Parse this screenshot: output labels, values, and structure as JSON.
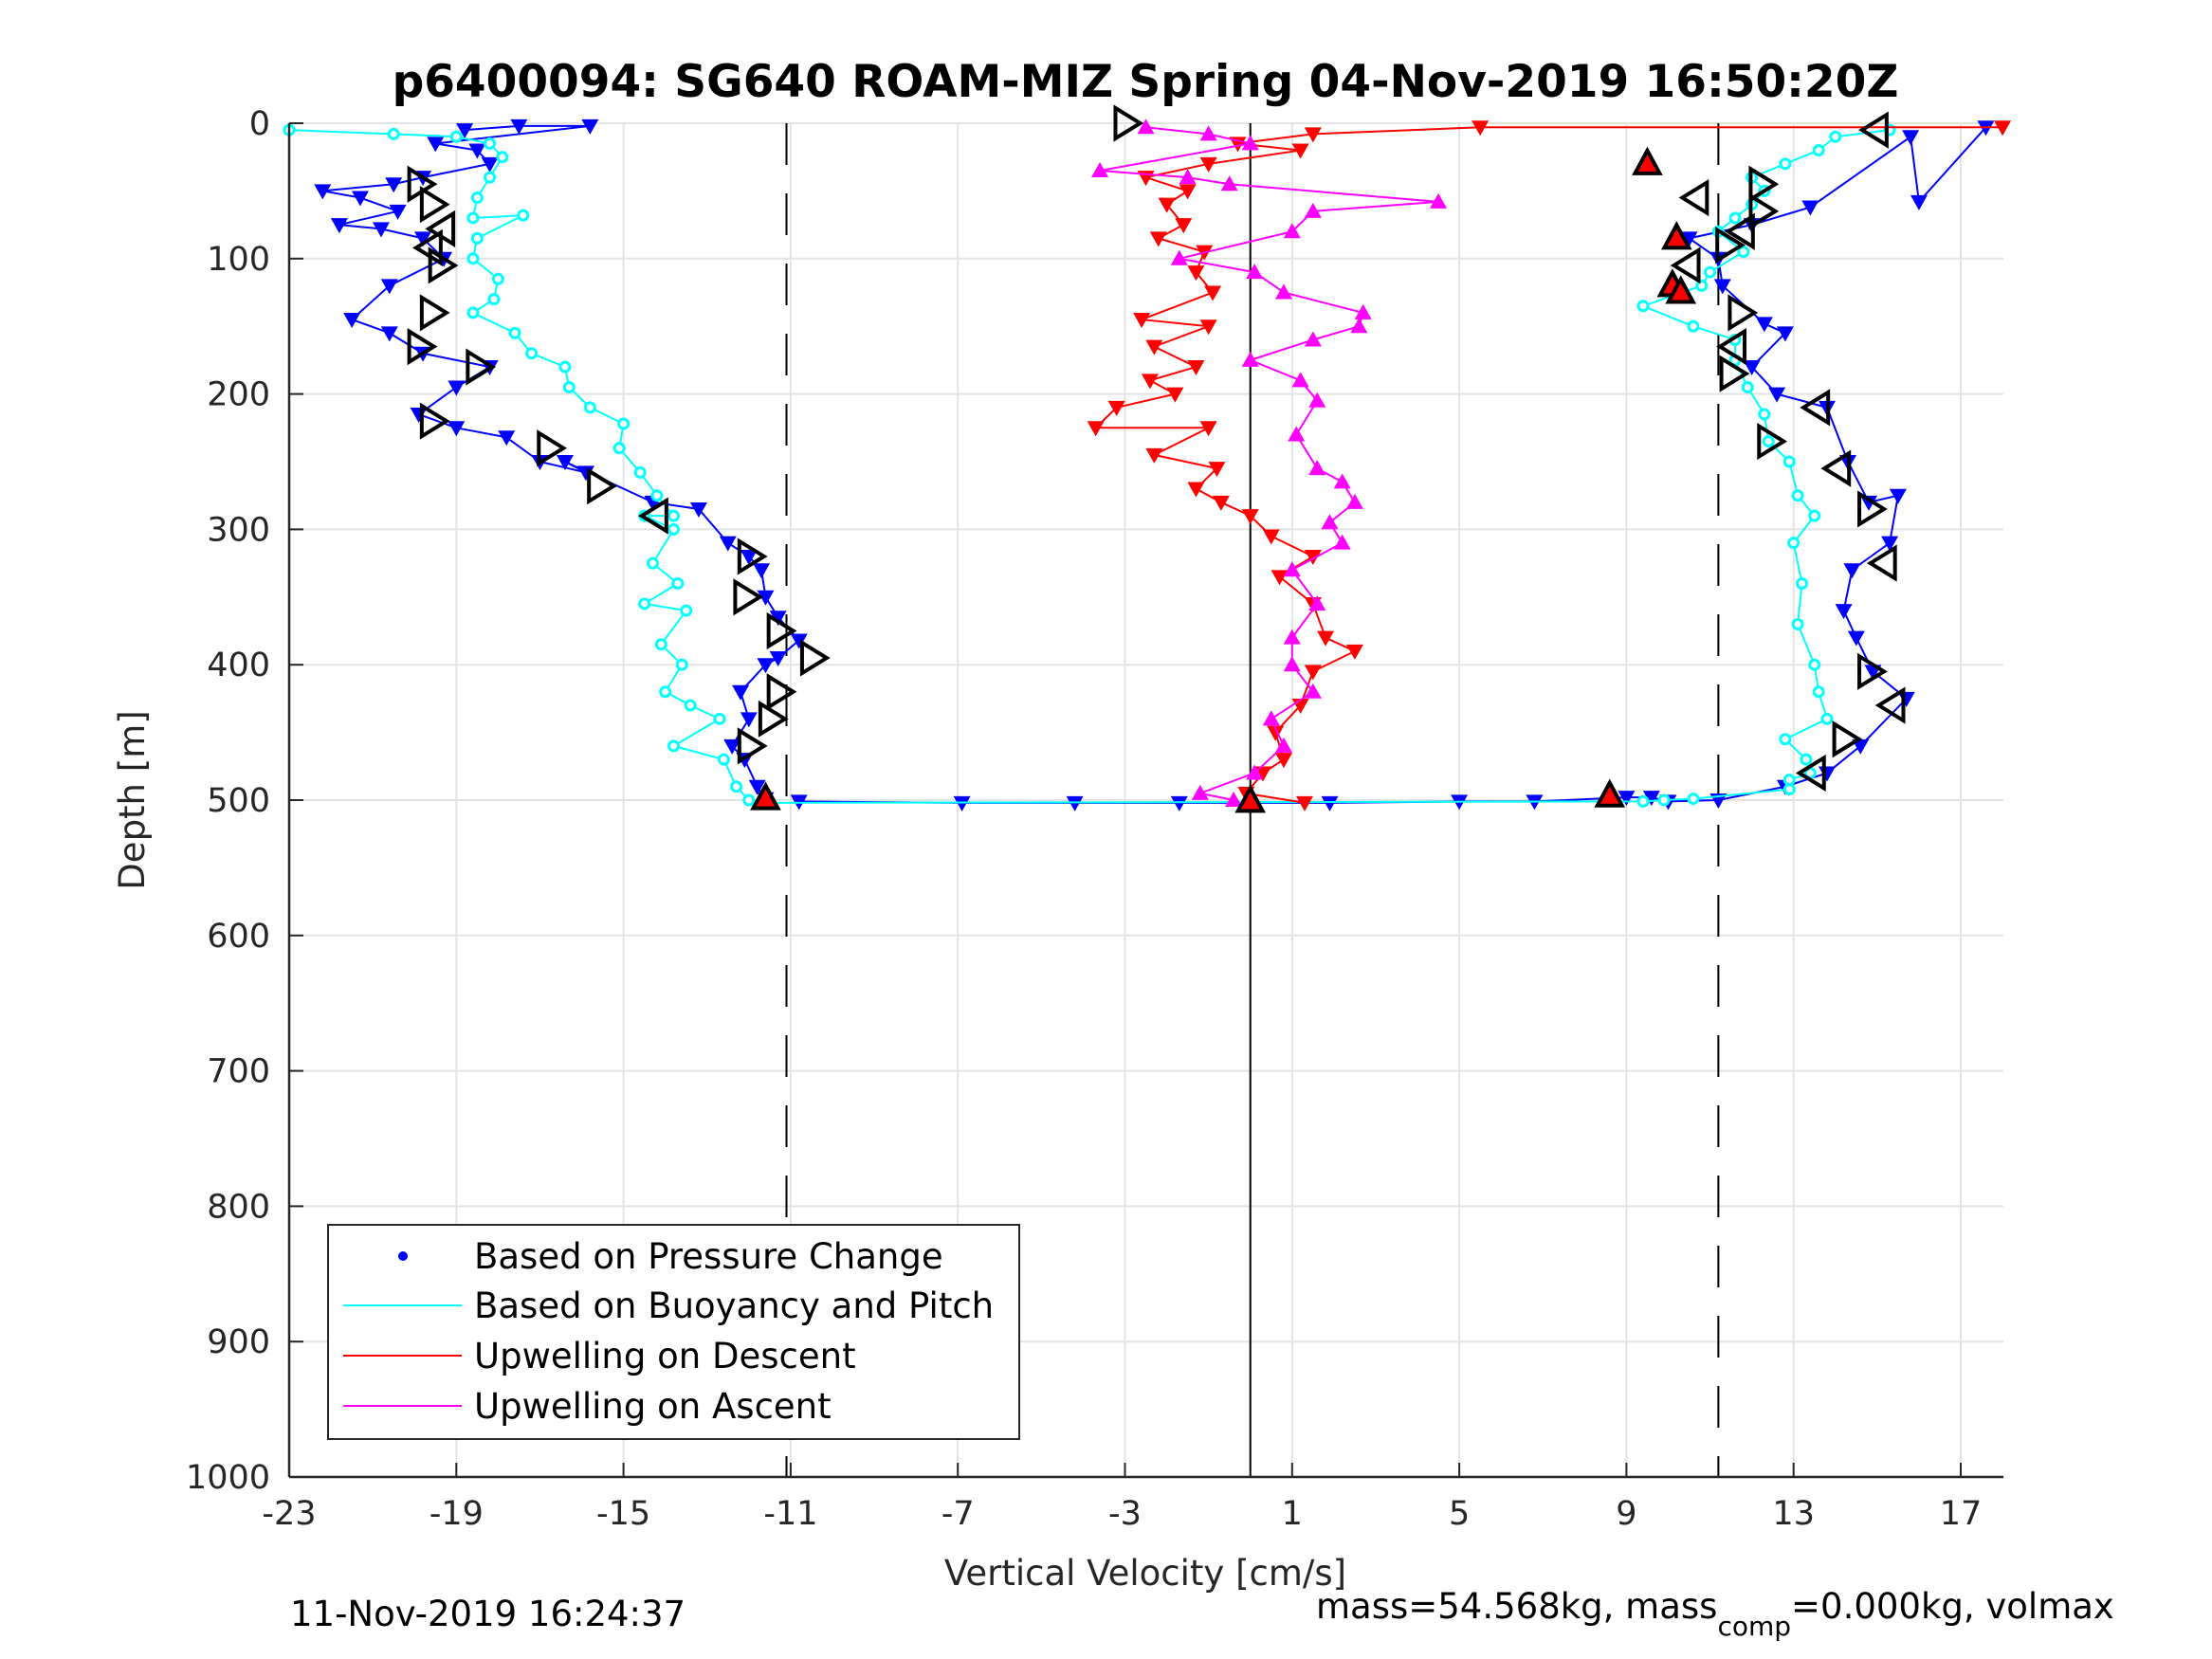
{
  "chart_data": {
    "type": "scatter",
    "title": "p6400094: SG640 ROAM-MIZ Spring 04-Nov-2019 16:50:20Z",
    "xlabel": "Vertical Velocity [cm/s]",
    "ylabel": "Depth [m]",
    "xlim": [
      -23,
      18
    ],
    "ylim": [
      0,
      1000
    ],
    "y_reversed": true,
    "grid": true,
    "x_ticks": [
      "-23",
      "-19",
      "-15",
      "-11",
      "-7",
      "-3",
      "1",
      "5",
      "9",
      "13",
      "17"
    ],
    "y_ticks": [
      "0",
      "100",
      "200",
      "300",
      "400",
      "500",
      "600",
      "700",
      "800",
      "900",
      "1000"
    ],
    "reference_lines": [
      {
        "name": "descent-target",
        "x": -11.1,
        "style": "dashed"
      },
      {
        "name": "zero",
        "x": 0,
        "style": "solid"
      },
      {
        "name": "ascent-target",
        "x": 11.2,
        "style": "dashed"
      }
    ],
    "legend": {
      "placement": "bottom-left",
      "entries": [
        {
          "label": "Based on Pressure Change",
          "color": "#0000ff",
          "marker": "dot"
        },
        {
          "label": "Based on Buoyancy and Pitch",
          "color": "#00ffff",
          "marker": "line"
        },
        {
          "label": "Upwelling on Descent",
          "color": "#ff0000",
          "marker": "line"
        },
        {
          "label": "Upwelling on Ascent",
          "color": "#ff00ff",
          "marker": "line"
        }
      ]
    },
    "series": [
      {
        "name": "Based on Pressure Change (descent)",
        "color": "#0000ff",
        "points": [
          [
            -18.8,
            5
          ],
          [
            -17.5,
            2
          ],
          [
            -15.8,
            2
          ],
          [
            -19.5,
            15
          ],
          [
            -18.5,
            20
          ],
          [
            -18.2,
            30
          ],
          [
            -19.8,
            40
          ],
          [
            -20.5,
            45
          ],
          [
            -22.2,
            50
          ],
          [
            -21.3,
            55
          ],
          [
            -20.4,
            65
          ],
          [
            -21.8,
            75
          ],
          [
            -20.8,
            78
          ],
          [
            -19.8,
            85
          ],
          [
            -19.3,
            100
          ],
          [
            -20.6,
            120
          ],
          [
            -21.5,
            145
          ],
          [
            -20.6,
            155
          ],
          [
            -19.8,
            170
          ],
          [
            -18.2,
            180
          ],
          [
            -19.0,
            195
          ],
          [
            -19.9,
            215
          ],
          [
            -19.0,
            225
          ],
          [
            -17.8,
            232
          ],
          [
            -17.0,
            250
          ],
          [
            -15.9,
            258
          ],
          [
            -16.4,
            250
          ],
          [
            -14.3,
            280
          ],
          [
            -13.2,
            285
          ],
          [
            -12.5,
            310
          ],
          [
            -12.0,
            320
          ],
          [
            -11.7,
            330
          ],
          [
            -11.6,
            350
          ],
          [
            -11.3,
            365
          ],
          [
            -10.8,
            382
          ],
          [
            -11.3,
            395
          ],
          [
            -11.6,
            400
          ],
          [
            -12.2,
            420
          ],
          [
            -12.0,
            440
          ],
          [
            -12.4,
            460
          ],
          [
            -12.1,
            470
          ],
          [
            -11.8,
            490
          ],
          [
            -11.6,
            499
          ]
        ]
      },
      {
        "name": "Based on Buoyancy and Pitch (descent)",
        "color": "#00ffff",
        "points": [
          [
            -23,
            5
          ],
          [
            -20.5,
            8
          ],
          [
            -19.0,
            10
          ],
          [
            -18.2,
            15
          ],
          [
            -17.9,
            25
          ],
          [
            -18.2,
            40
          ],
          [
            -18.5,
            55
          ],
          [
            -18.6,
            70
          ],
          [
            -17.4,
            68
          ],
          [
            -18.5,
            85
          ],
          [
            -18.6,
            100
          ],
          [
            -18.0,
            115
          ],
          [
            -18.1,
            130
          ],
          [
            -18.6,
            140
          ],
          [
            -17.6,
            155
          ],
          [
            -17.2,
            170
          ],
          [
            -16.4,
            180
          ],
          [
            -16.3,
            195
          ],
          [
            -15.8,
            210
          ],
          [
            -15.0,
            222
          ],
          [
            -15.1,
            240
          ],
          [
            -14.6,
            258
          ],
          [
            -14.2,
            275
          ],
          [
            -13.8,
            290
          ],
          [
            -14.5,
            290
          ],
          [
            -13.8,
            300
          ],
          [
            -14.3,
            325
          ],
          [
            -13.7,
            340
          ],
          [
            -14.5,
            355
          ],
          [
            -13.5,
            360
          ],
          [
            -14.1,
            385
          ],
          [
            -13.6,
            400
          ],
          [
            -14.0,
            420
          ],
          [
            -13.4,
            430
          ],
          [
            -12.7,
            440
          ],
          [
            -13.8,
            460
          ],
          [
            -12.6,
            470
          ],
          [
            -12.3,
            490
          ],
          [
            -12.0,
            500
          ]
        ]
      },
      {
        "name": "Based on Pressure Change (ascent)",
        "color": "#0000ff",
        "points": [
          [
            17.6,
            3
          ],
          [
            16.0,
            58
          ],
          [
            15.8,
            10
          ],
          [
            13.4,
            62
          ],
          [
            12.0,
            75
          ],
          [
            10.5,
            85
          ],
          [
            11.2,
            100
          ],
          [
            11.3,
            120
          ],
          [
            12.3,
            148
          ],
          [
            12.8,
            155
          ],
          [
            12.0,
            180
          ],
          [
            12.6,
            200
          ],
          [
            13.8,
            210
          ],
          [
            14.3,
            250
          ],
          [
            14.8,
            280
          ],
          [
            15.5,
            275
          ],
          [
            15.3,
            310
          ],
          [
            14.4,
            330
          ],
          [
            14.2,
            360
          ],
          [
            14.5,
            380
          ],
          [
            14.9,
            405
          ],
          [
            15.7,
            425
          ],
          [
            14.6,
            460
          ],
          [
            13.8,
            480
          ],
          [
            12.8,
            490
          ],
          [
            11.2,
            500
          ],
          [
            10.0,
            501
          ],
          [
            9.6,
            498
          ],
          [
            9.0,
            498
          ],
          [
            6.8,
            501
          ],
          [
            5.0,
            501
          ],
          [
            1.9,
            502
          ],
          [
            -1.7,
            502
          ],
          [
            -4.2,
            502
          ],
          [
            -6.9,
            502
          ],
          [
            -10.8,
            501
          ]
        ]
      },
      {
        "name": "Based on Buoyancy and Pitch (ascent)",
        "color": "#00ffff",
        "points": [
          [
            15.3,
            5
          ],
          [
            14.0,
            10
          ],
          [
            13.6,
            20
          ],
          [
            12.8,
            30
          ],
          [
            12.0,
            40
          ],
          [
            12.3,
            50
          ],
          [
            12.0,
            60
          ],
          [
            11.6,
            70
          ],
          [
            11.2,
            80
          ],
          [
            11.8,
            95
          ],
          [
            11.0,
            110
          ],
          [
            10.8,
            120
          ],
          [
            9.4,
            135
          ],
          [
            10.6,
            150
          ],
          [
            11.6,
            160
          ],
          [
            11.6,
            175
          ],
          [
            11.9,
            195
          ],
          [
            12.3,
            215
          ],
          [
            12.4,
            235
          ],
          [
            12.9,
            250
          ],
          [
            13.1,
            275
          ],
          [
            13.5,
            290
          ],
          [
            13.0,
            310
          ],
          [
            13.2,
            340
          ],
          [
            13.1,
            370
          ],
          [
            13.5,
            400
          ],
          [
            13.6,
            420
          ],
          [
            13.8,
            440
          ],
          [
            12.8,
            455
          ],
          [
            13.3,
            470
          ],
          [
            13.4,
            480
          ],
          [
            12.9,
            485
          ],
          [
            12.9,
            492
          ],
          [
            10.6,
            499
          ],
          [
            9.9,
            500
          ],
          [
            9.4,
            501
          ],
          [
            -11.6,
            502
          ]
        ]
      },
      {
        "name": "Upwelling on Descent",
        "color": "#ff0000",
        "points": [
          [
            18,
            3
          ],
          [
            5.5,
            3
          ],
          [
            1.5,
            8
          ],
          [
            -0.3,
            15
          ],
          [
            1.2,
            20
          ],
          [
            -1.0,
            30
          ],
          [
            -2.5,
            40
          ],
          [
            -1.5,
            50
          ],
          [
            -2.0,
            60
          ],
          [
            -1.6,
            75
          ],
          [
            -2.2,
            85
          ],
          [
            -1.1,
            95
          ],
          [
            -1.3,
            110
          ],
          [
            -0.9,
            125
          ],
          [
            -2.6,
            145
          ],
          [
            -1.0,
            150
          ],
          [
            -2.3,
            165
          ],
          [
            -1.3,
            180
          ],
          [
            -2.4,
            190
          ],
          [
            -1.8,
            200
          ],
          [
            -3.2,
            210
          ],
          [
            -3.7,
            225
          ],
          [
            -1.0,
            225
          ],
          [
            -2.3,
            245
          ],
          [
            -0.8,
            255
          ],
          [
            -1.3,
            270
          ],
          [
            -0.7,
            280
          ],
          [
            0,
            290
          ],
          [
            0.5,
            305
          ],
          [
            1.5,
            320
          ],
          [
            0.7,
            335
          ],
          [
            1.5,
            355
          ],
          [
            1.8,
            380
          ],
          [
            2.5,
            390
          ],
          [
            1.5,
            405
          ],
          [
            1.2,
            430
          ],
          [
            0.6,
            450
          ],
          [
            0.8,
            470
          ],
          [
            0.3,
            480
          ],
          [
            -0.1,
            495
          ],
          [
            1.3,
            502
          ]
        ]
      },
      {
        "name": "Upwelling on Ascent",
        "color": "#ff00ff",
        "points": [
          [
            -2.5,
            3
          ],
          [
            -1.0,
            8
          ],
          [
            0,
            15
          ],
          [
            -3.6,
            35
          ],
          [
            -1.5,
            40
          ],
          [
            -0.5,
            45
          ],
          [
            4.5,
            58
          ],
          [
            1.5,
            65
          ],
          [
            1.0,
            80
          ],
          [
            -1.7,
            100
          ],
          [
            0.1,
            110
          ],
          [
            0.8,
            125
          ],
          [
            2.7,
            140
          ],
          [
            2.6,
            150
          ],
          [
            1.5,
            160
          ],
          [
            0,
            175
          ],
          [
            1.2,
            190
          ],
          [
            1.6,
            205
          ],
          [
            1.1,
            230
          ],
          [
            1.6,
            255
          ],
          [
            2.2,
            265
          ],
          [
            2.5,
            280
          ],
          [
            1.9,
            295
          ],
          [
            2.2,
            310
          ],
          [
            1.0,
            330
          ],
          [
            1.6,
            355
          ],
          [
            1.0,
            380
          ],
          [
            1.0,
            400
          ],
          [
            1.5,
            420
          ],
          [
            0.5,
            440
          ],
          [
            0.8,
            460
          ],
          [
            0.1,
            480
          ],
          [
            -1.2,
            495
          ],
          [
            -0.4,
            500
          ]
        ]
      }
    ],
    "markers": {
      "descent_open_triangles": [
        [
          -3,
          0
        ],
        [
          -19.9,
          45
        ],
        [
          -19.6,
          60
        ],
        [
          -19.3,
          78
        ],
        [
          -19.6,
          92
        ],
        [
          -19.4,
          105
        ],
        [
          -19.6,
          140
        ],
        [
          -19.9,
          165
        ],
        [
          -18.5,
          180
        ],
        [
          -19.6,
          220
        ],
        [
          -16.8,
          240
        ],
        [
          -15.6,
          268
        ],
        [
          -14.2,
          290
        ],
        [
          -12.0,
          320
        ],
        [
          -12.1,
          350
        ],
        [
          -11.3,
          375
        ],
        [
          -10.5,
          395
        ],
        [
          -11.3,
          420
        ],
        [
          -11.5,
          440
        ],
        [
          -12.0,
          460
        ]
      ],
      "ascent_open_triangles": [
        [
          15.0,
          5
        ],
        [
          12.2,
          45
        ],
        [
          10.7,
          55
        ],
        [
          12.2,
          65
        ],
        [
          11.8,
          80
        ],
        [
          11.4,
          90
        ],
        [
          10.5,
          105
        ],
        [
          11.7,
          140
        ],
        [
          11.6,
          165
        ],
        [
          11.5,
          185
        ],
        [
          13.6,
          210
        ],
        [
          12.4,
          235
        ],
        [
          14.1,
          255
        ],
        [
          14.8,
          285
        ],
        [
          15.2,
          325
        ],
        [
          14.8,
          405
        ],
        [
          15.4,
          430
        ],
        [
          14.2,
          455
        ],
        [
          13.5,
          480
        ]
      ],
      "red_filled_triangles": [
        [
          9.5,
          30
        ],
        [
          10.2,
          85
        ],
        [
          10.1,
          120
        ],
        [
          10.3,
          125
        ],
        [
          -11.6,
          499
        ],
        [
          8.6,
          497
        ],
        [
          0,
          501
        ]
      ]
    }
  },
  "footer": {
    "timestamp": "11-Nov-2019 16:24:37",
    "mass_prefix": "mass=54.568kg, mass",
    "mass_sub": "comp",
    "mass_suffix": "=0.000kg, volmax"
  }
}
